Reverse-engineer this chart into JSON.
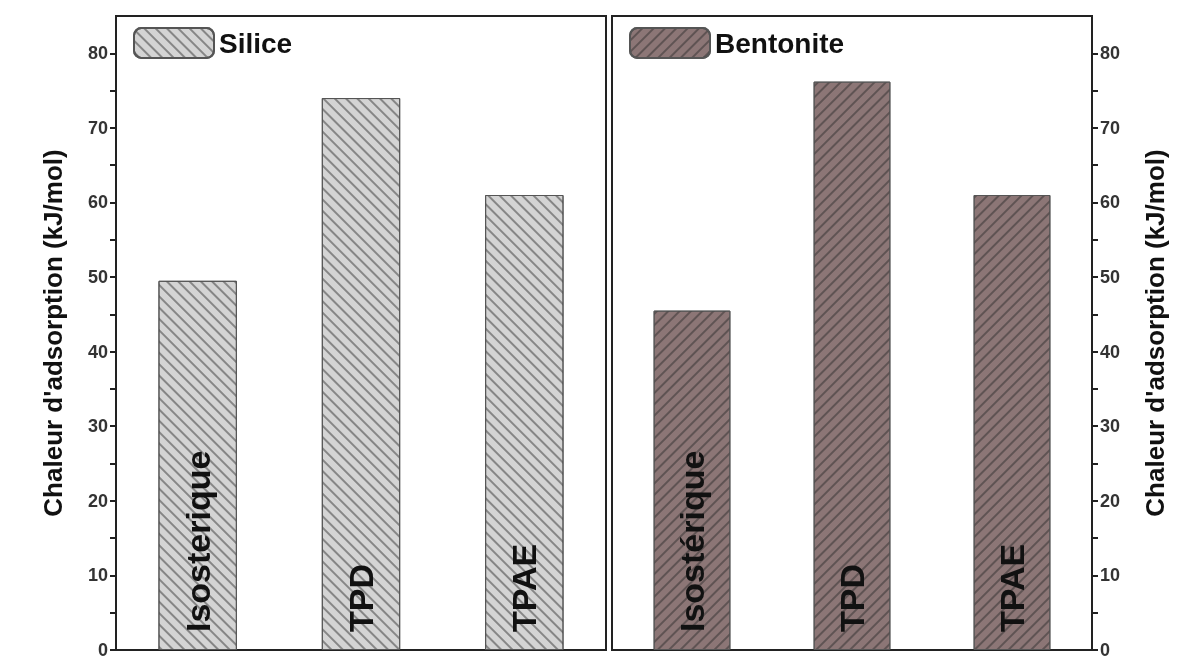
{
  "chart_data": [
    {
      "type": "bar",
      "ylabel": "Chaleur d'adsorption (kJ/mol)",
      "categories": [
        "Isosterique",
        "TPD",
        "TPAE"
      ],
      "series": [
        {
          "name": "Silice",
          "color": "#d4d4d4",
          "values": [
            49.5,
            74,
            61
          ]
        }
      ],
      "ylim": [
        0,
        85
      ],
      "yticks": [
        0,
        {
          "value": 5,
          "label": null
        },
        10,
        {
          "value": 15,
          "label": null
        },
        20,
        {
          "value": 25,
          "label": null
        },
        30,
        {
          "value": 35,
          "label": null
        },
        40,
        {
          "value": 45,
          "label": null
        },
        50,
        {
          "value": 55,
          "label": null
        },
        60,
        {
          "value": 65,
          "label": null
        },
        70,
        {
          "value": 75,
          "label": null
        },
        80
      ],
      "tick_labels": "y",
      "legend": "top left",
      "grid": false
    },
    {
      "type": "bar",
      "ylabel": "Chaleur d'adsorption (kJ/mol)",
      "categories": [
        "Isostérique",
        "TPD",
        "TPAE"
      ],
      "series": [
        {
          "name": "Bentonite",
          "color": "#8c7676",
          "values": [
            45.5,
            76.2,
            61
          ]
        }
      ],
      "ylim": [
        0,
        85
      ],
      "yticks": [
        0,
        {
          "value": 5,
          "label": null
        },
        10,
        {
          "value": 15,
          "label": null
        },
        20,
        {
          "value": 25,
          "label": null
        },
        30,
        {
          "value": 35,
          "label": null
        },
        40,
        {
          "value": 45,
          "label": null
        },
        50,
        {
          "value": 55,
          "label": null
        },
        60,
        {
          "value": 65,
          "label": null
        },
        70,
        {
          "value": 75,
          "label": null
        },
        80
      ],
      "tick_labels": "y",
      "legend": "top left",
      "grid": false
    }
  ]
}
